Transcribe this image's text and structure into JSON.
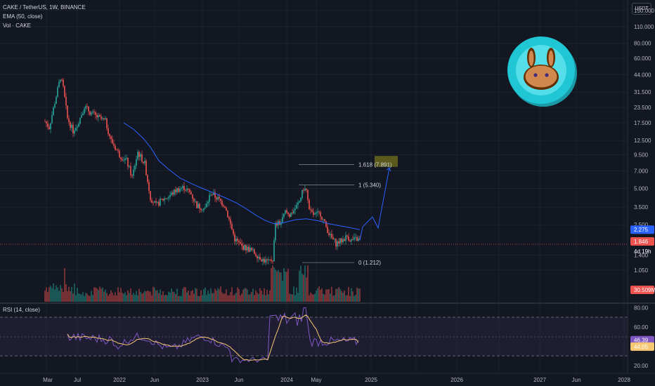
{
  "header": {
    "symbol_line": "CAKE / TetherUS, 1W, BINANCE",
    "ema_line": "EMA (50, close)",
    "vol_line": "Vol · CAKE",
    "rsi_line": "RSI (14, close)"
  },
  "currency_button": "USDT",
  "price_axis": {
    "scale": "log",
    "ticks": [
      "150.000",
      "110.000",
      "80.000",
      "60.000",
      "44.000",
      "31.500",
      "23.500",
      "17.500",
      "12.500",
      "9.500",
      "7.000",
      "5.000",
      "3.500",
      "2.500",
      "1.400",
      "1.050"
    ],
    "ticks_num": [
      150,
      110,
      80,
      60,
      44,
      31.5,
      23.5,
      17.5,
      12.5,
      9.5,
      7,
      5,
      3.5,
      2.5,
      1.4,
      1.05
    ],
    "ema_label": "2.275",
    "price_label": "1.846",
    "countdown_label": "4d 19h",
    "volume_label": "30.509M"
  },
  "rsi_axis": {
    "ticks": [
      "80.00",
      "60.00",
      "20.00"
    ],
    "ticks_num": [
      80,
      60,
      20
    ],
    "rsi_label": "46.39",
    "ma_label": "44.05"
  },
  "time_axis": {
    "labels": [
      "Mar",
      "Jul",
      "2022",
      "Jun",
      "2023",
      "Jun",
      "2024",
      "May",
      "2025",
      "2026",
      "2027",
      "Jun",
      "2028"
    ]
  },
  "fib_levels": [
    {
      "label": "1.618 (7.891)",
      "price": 7.891
    },
    {
      "label": "1 (5.340)",
      "price": 5.34
    },
    {
      "label": "0 (1.212)",
      "price": 1.212
    }
  ],
  "colors": {
    "up": "#26a69a",
    "down": "#ef5350",
    "ema": "#2962ff",
    "rsi": "#7e57c2",
    "rsi_ma": "#f7c873",
    "projection": "#2962ff",
    "fib_box": "#6b6b1c",
    "logo_ring": "#1fc7d4",
    "logo_bunny": "#d1884f"
  },
  "logo": {
    "name": "pancakeswap-bunny-icon"
  },
  "chart_data": {
    "type": "candlestick",
    "title": "CAKE / TetherUS, 1W, BINANCE",
    "ylim": [
      1.0,
      160
    ],
    "yscale": "log",
    "key_points": [
      {
        "x": "2021-04",
        "high": 44.0,
        "note": "all-time high"
      },
      {
        "x": "2022-06",
        "close": 3.9
      },
      {
        "x": "2023-10",
        "low": 1.212
      },
      {
        "x": "2024-03",
        "high": 5.34
      },
      {
        "x": "2024-10",
        "close": 1.846
      }
    ],
    "ema50_last": 2.275,
    "last_price": 1.846,
    "last_volume": "30.509M",
    "rsi_last": 46.39,
    "rsi_ma_last": 44.05,
    "fib_targets": [
      7.891,
      5.34,
      1.212
    ]
  }
}
